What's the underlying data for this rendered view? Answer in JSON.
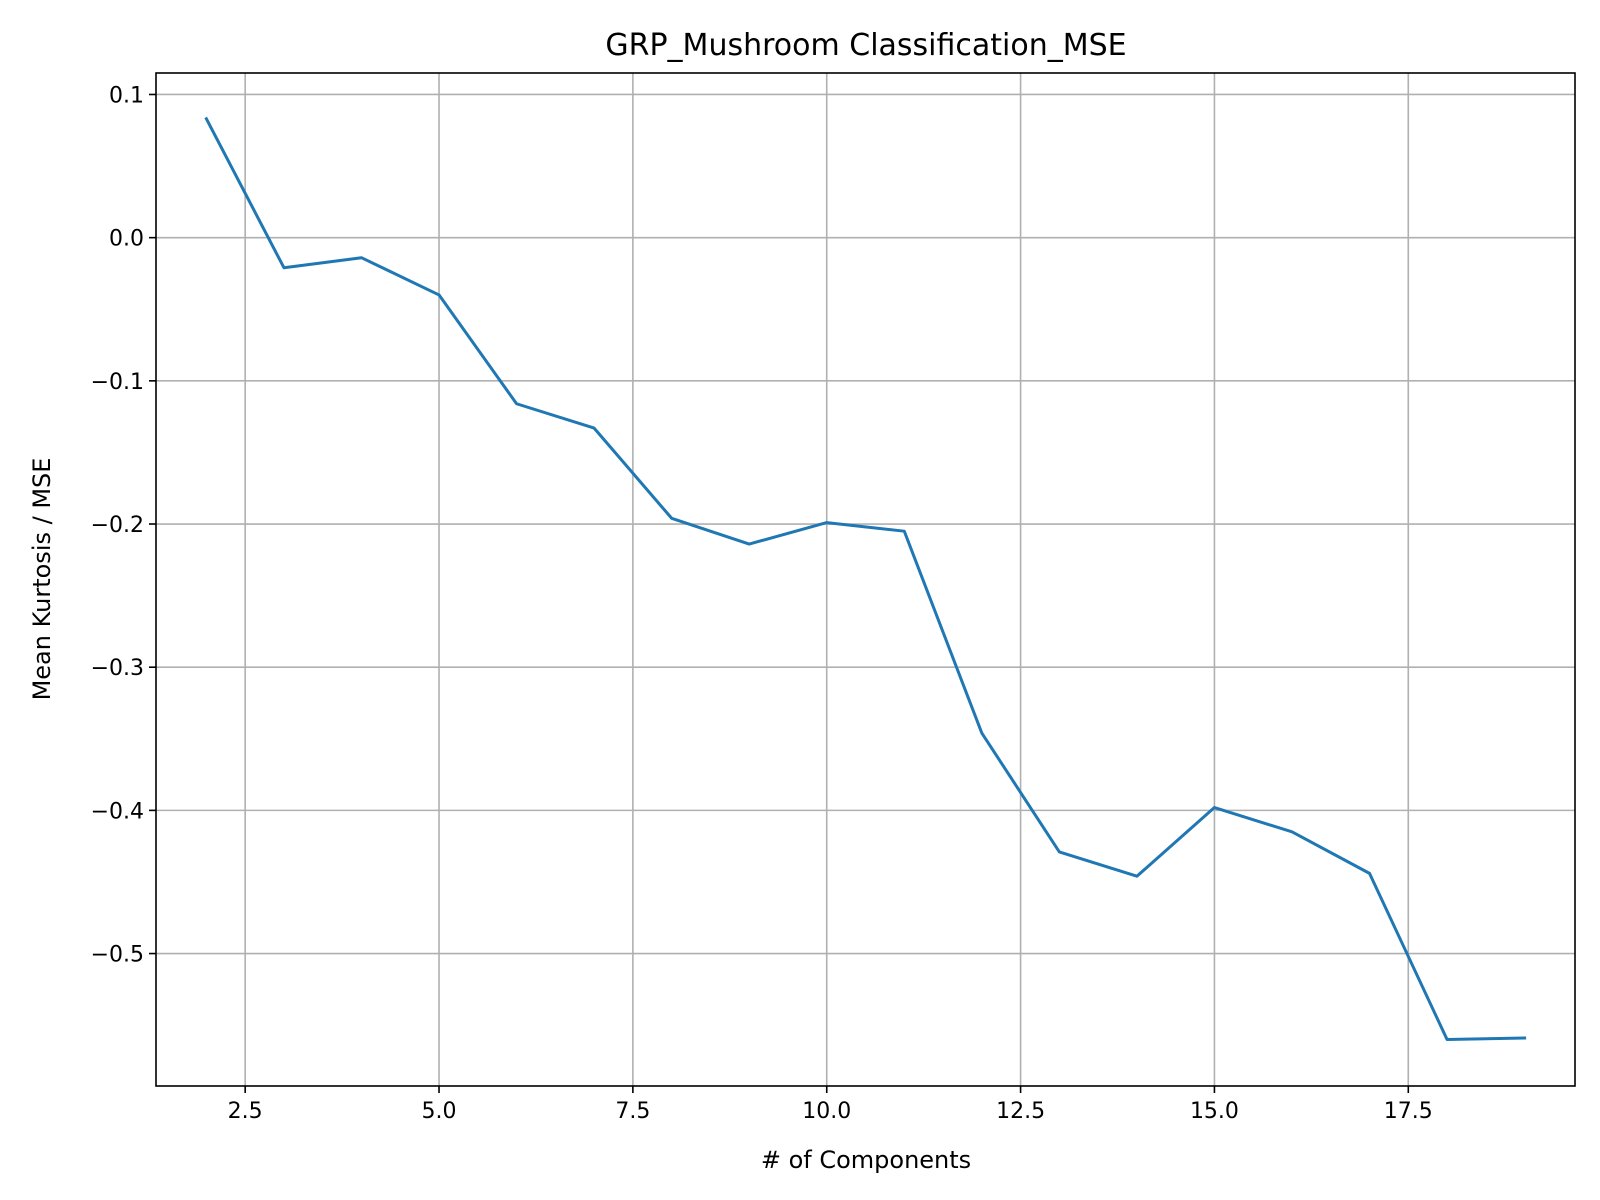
{
  "chart_data": {
    "type": "line",
    "title": "GRP_Mushroom Classification_MSE",
    "xlabel": "# of Components",
    "ylabel": "Mean Kurtosis / MSE",
    "xlim": [
      1.35,
      19.65
    ],
    "ylim": [
      -0.5925,
      0.115
    ],
    "xticks": [
      2.5,
      5.0,
      7.5,
      10.0,
      12.5,
      15.0,
      17.5
    ],
    "xtick_labels": [
      "2.5",
      "5.0",
      "7.5",
      "10.0",
      "12.5",
      "15.0",
      "17.5"
    ],
    "yticks": [
      0.1,
      0.0,
      -0.1,
      -0.2,
      -0.3,
      -0.4,
      -0.5
    ],
    "ytick_labels": [
      "0.1",
      "0.0",
      "−0.1",
      "−0.2",
      "−0.3",
      "−0.4",
      "−0.5"
    ],
    "grid": true,
    "series": [
      {
        "color": "#1f77b4",
        "x": [
          2,
          3,
          4,
          5,
          6,
          7,
          8,
          9,
          10,
          11,
          12,
          13,
          14,
          15,
          16,
          17,
          18,
          19
        ],
        "y": [
          0.083,
          -0.021,
          -0.014,
          -0.04,
          -0.116,
          -0.133,
          -0.196,
          -0.214,
          -0.199,
          -0.205,
          -0.346,
          -0.429,
          -0.446,
          -0.398,
          -0.415,
          -0.444,
          -0.56,
          -0.559
        ]
      }
    ]
  }
}
